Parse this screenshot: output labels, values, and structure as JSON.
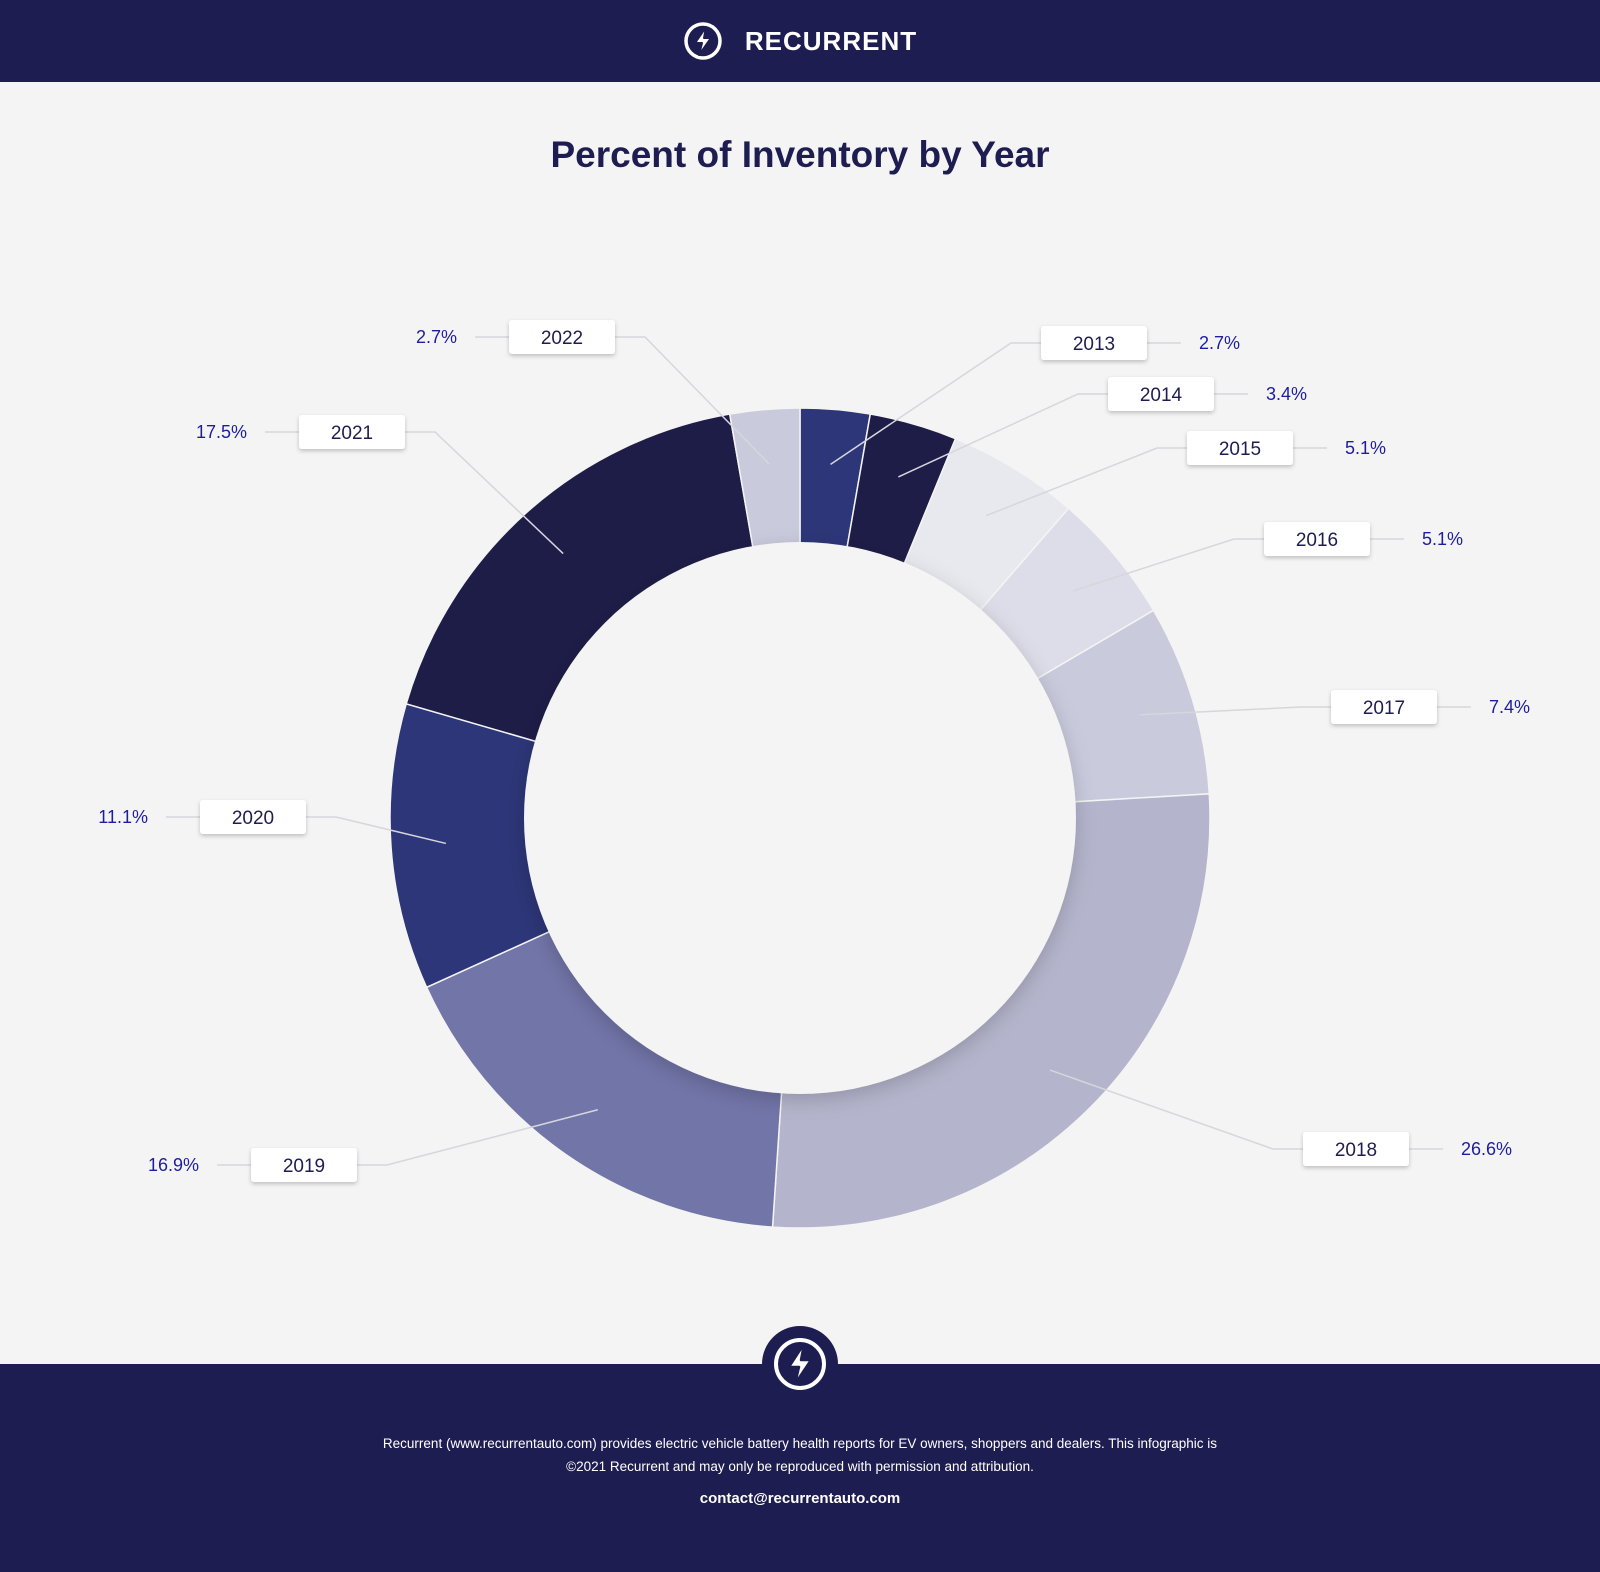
{
  "header": {
    "brand": "RECURRENT",
    "logo_icon": "bolt-circle-icon"
  },
  "chart_data": {
    "type": "pie",
    "title": "Percent of Inventory by Year",
    "donut": true,
    "categories": [
      "2013",
      "2014",
      "2015",
      "2016",
      "2017",
      "2018",
      "2019",
      "2020",
      "2021",
      "2022"
    ],
    "values": [
      2.7,
      3.4,
      5.1,
      5.1,
      7.4,
      26.6,
      16.9,
      11.1,
      17.5,
      2.7
    ],
    "value_labels": [
      "2.7%",
      "3.4%",
      "5.1%",
      "5.1%",
      "7.4%",
      "26.6%",
      "16.9%",
      "11.1%",
      "17.5%",
      "2.7%"
    ],
    "colors": [
      "#2d3678",
      "#1e1d48",
      "#e8e9ee",
      "#dcdde8",
      "#c9cbdd",
      "#b4b4cc",
      "#7275a8",
      "#2d3678",
      "#1e1d48",
      "#c9cbdd"
    ],
    "legend": "callout-labels"
  },
  "footer": {
    "description_line1": "Recurrent (www.recurrentauto.com) provides electric vehicle battery health reports for EV owners, shoppers and dealers. This infographic is",
    "description_line2": "©2021 Recurrent and may only be reproduced with permission and attribution.",
    "contact": "contact@recurrentauto.com",
    "logo_icon": "bolt-circle-icon"
  }
}
